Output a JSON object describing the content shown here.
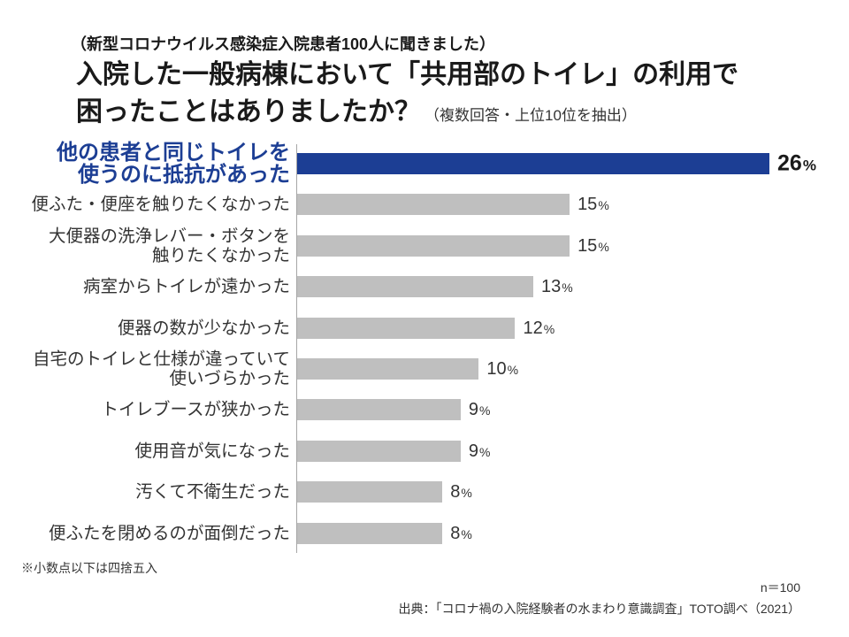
{
  "header": {
    "subtitle": "（新型コロナウイルス感染症入院患者100人に聞きました）",
    "title_line1": "入院した一般病棟において「共用部のトイレ」の利用で",
    "title_line2": "困ったことはありましたか？",
    "note": "（複数回答・上位10位を抽出）"
  },
  "chart_data": {
    "type": "bar",
    "orientation": "horizontal",
    "categories": [
      "他の患者と同じトイレを\n使うのに抵抗があった",
      "便ふた・便座を触りたくなかった",
      "大便器の洗浄レバー・ボタンを\n触りたくなかった",
      "病室からトイレが遠かった",
      "便器の数が少なかった",
      "自宅のトイレと仕様が違っていて\n使いづらかった",
      "トイレブースが狭かった",
      "使用音が気になった",
      "汚くて不衛生だった",
      "便ふたを閉めるのが面倒だった"
    ],
    "values": [
      26,
      15,
      15,
      13,
      12,
      10,
      9,
      9,
      8,
      8
    ],
    "unit": "%",
    "xlim": [
      0,
      26
    ],
    "grid": false,
    "highlight_index": 0,
    "colors": {
      "highlight_bar": "#1c3e94",
      "highlight_label": "#1c3e94",
      "bar": "#bfbfbf"
    }
  },
  "footer": {
    "rounding_note": "※小数点以下は四捨五入",
    "sample_size": "n＝100",
    "source": "出典：「コロナ禍の入院経験者の水まわり意識調査」TOTO調べ（2021）"
  }
}
